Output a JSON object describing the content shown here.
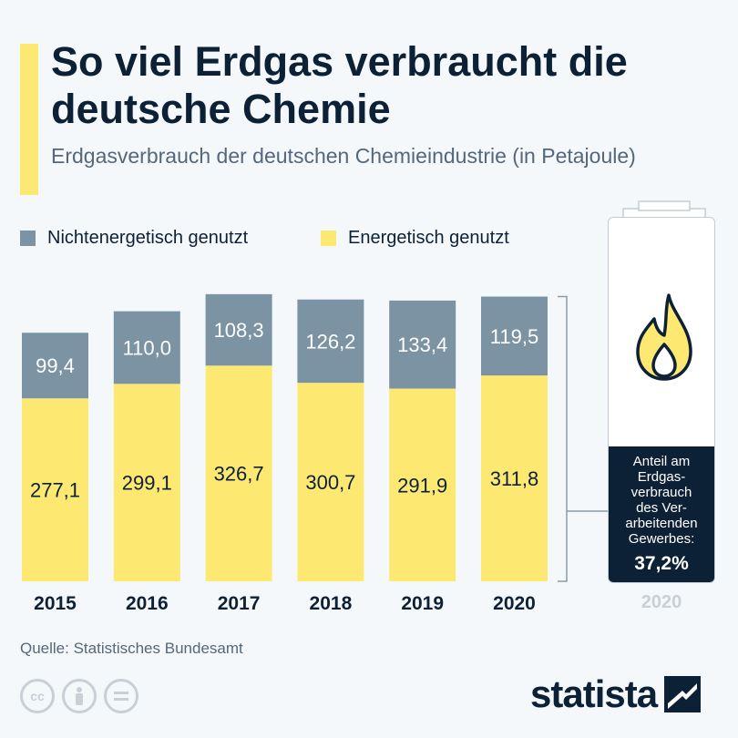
{
  "header": {
    "title": "So viel Erdgas verbraucht die deutsche Chemie",
    "subtitle": "Erdgasverbrauch der deutschen Chemieindustrie (in Petajoule)"
  },
  "colors": {
    "accent": "#fde872",
    "energetic": "#fde872",
    "non_energetic": "#7b93a3",
    "navy": "#0d2136"
  },
  "chart_data": {
    "type": "bar",
    "stacked": true,
    "title": "So viel Erdgas verbraucht die deutsche Chemie",
    "subtitle": "Erdgasverbrauch der deutschen Chemieindustrie (in Petajoule)",
    "categories": [
      "2015",
      "2016",
      "2017",
      "2018",
      "2019",
      "2020"
    ],
    "series": [
      {
        "name": "Energetisch genutzt",
        "color": "#fde872",
        "values": [
          277.1,
          299.1,
          326.7,
          300.7,
          291.9,
          311.8
        ],
        "labels": [
          "277,1",
          "299,1",
          "326,7",
          "300,7",
          "291,9",
          "311,8"
        ]
      },
      {
        "name": "Nichtenergetisch genutzt",
        "color": "#7b93a3",
        "values": [
          99.4,
          110.0,
          108.3,
          126.2,
          133.4,
          119.5
        ],
        "labels": [
          "99,4",
          "110,0",
          "108,3",
          "126,2",
          "133,4",
          "119,5"
        ]
      }
    ],
    "legend": "top-left",
    "grid": false
  },
  "side_panel": {
    "label": "Anteil am Erdgas-verbrauch des Ver-arbeitenden Gewerbes:",
    "label_lines": [
      "Anteil am",
      "Erdgas-",
      "verbrauch",
      "des Ver-",
      "arbeitenden",
      "Gewerbes:"
    ],
    "value": "37,2%",
    "share": 0.372,
    "year": "2020",
    "icon": "flame-icon"
  },
  "footer": {
    "source": "Quelle: Statistisches Bundesamt",
    "logo": "statista",
    "license_icons": [
      "cc-icon",
      "attribution-icon",
      "no-derivatives-icon"
    ]
  }
}
